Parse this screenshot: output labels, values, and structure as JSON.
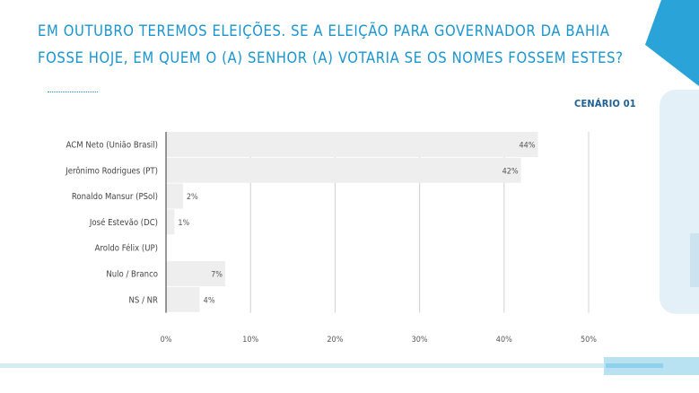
{
  "title": "EM OUTUBRO TEREMOS ELEIÇÕES. SE A ELEIÇÃO PARA GOVERNADOR DA BAHIA FOSSE HOJE, EM QUEM O (A) SENHOR (A) VOTARIA SE OS NOMES FOSSEM ESTES?",
  "scenario_label": "CENÁRIO 01",
  "colors": {
    "title": "#1a94cf",
    "bar": "#eeeeee",
    "grid": "#d0d0d0"
  },
  "chart_data": {
    "type": "bar",
    "orientation": "horizontal",
    "categories": [
      "ACM Neto (União Brasil)",
      "Jerônimo Rodrigues (PT)",
      "Ronaldo Mansur (PSol)",
      "José Estevão (DC)",
      "Aroldo Félix (UP)",
      "Nulo / Branco",
      "NS / NR"
    ],
    "values": [
      44,
      42,
      2,
      1,
      0,
      7,
      4
    ],
    "value_labels": [
      "44%",
      "42%",
      "2%",
      "1%",
      "",
      "7%",
      "4%"
    ],
    "xlim": [
      0,
      50
    ],
    "ticks": [
      0,
      10,
      20,
      30,
      40,
      50
    ],
    "tick_labels": [
      "0%",
      "10%",
      "20%",
      "30%",
      "40%",
      "50%"
    ],
    "grid": true
  }
}
